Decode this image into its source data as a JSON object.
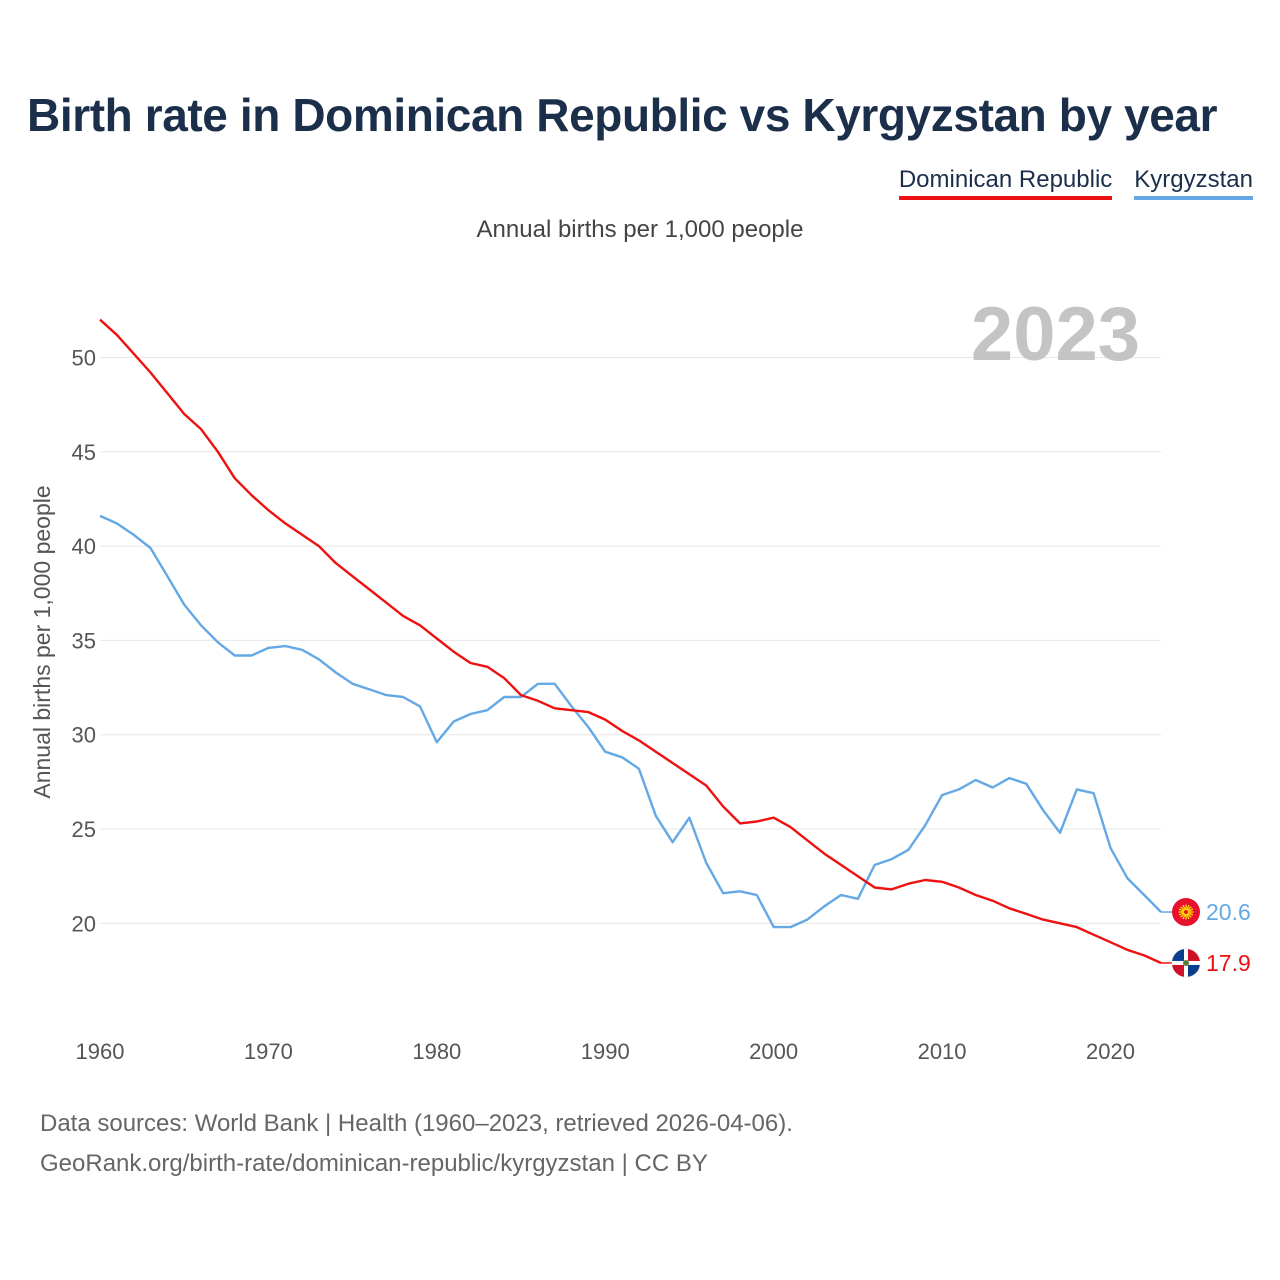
{
  "chart_data": {
    "type": "line",
    "title": "Birth rate in Dominican Republic vs Kyrgyzstan by year",
    "subtitle": "Annual births per 1,000 people",
    "ylabel": "Annual births per 1,000 people",
    "xlabel": "",
    "year_label": "2023",
    "xlim": [
      1960,
      2023
    ],
    "ylim": [
      15.3,
      54
    ],
    "x_ticks": [
      1960,
      1970,
      1980,
      1990,
      2000,
      2010,
      2020
    ],
    "y_ticks": [
      20,
      25,
      30,
      35,
      40,
      45,
      50
    ],
    "grid": true,
    "legend_position": "top-right",
    "x": [
      1960,
      1961,
      1962,
      1963,
      1964,
      1965,
      1966,
      1967,
      1968,
      1969,
      1970,
      1971,
      1972,
      1973,
      1974,
      1975,
      1976,
      1977,
      1978,
      1979,
      1980,
      1981,
      1982,
      1983,
      1984,
      1985,
      1986,
      1987,
      1988,
      1989,
      1990,
      1991,
      1992,
      1993,
      1994,
      1995,
      1996,
      1997,
      1998,
      1999,
      2000,
      2001,
      2002,
      2003,
      2004,
      2005,
      2006,
      2007,
      2008,
      2009,
      2010,
      2011,
      2012,
      2013,
      2014,
      2015,
      2016,
      2017,
      2018,
      2019,
      2020,
      2021,
      2022,
      2023
    ],
    "series": [
      {
        "name": "Dominican Republic",
        "color": "#ee1111",
        "end_label": "17.9",
        "values": [
          52.0,
          51.2,
          50.2,
          49.2,
          48.1,
          47.0,
          46.2,
          45.0,
          43.6,
          42.7,
          41.9,
          41.2,
          40.6,
          40.0,
          39.1,
          38.4,
          37.7,
          37.0,
          36.3,
          35.8,
          35.1,
          34.4,
          33.8,
          33.6,
          33.0,
          32.1,
          31.8,
          31.4,
          31.3,
          31.2,
          30.8,
          30.2,
          29.7,
          29.1,
          28.5,
          27.9,
          27.3,
          26.2,
          25.3,
          25.4,
          25.6,
          25.1,
          24.4,
          23.7,
          23.1,
          22.5,
          21.9,
          21.8,
          22.1,
          22.3,
          22.2,
          21.9,
          21.5,
          21.2,
          20.8,
          20.5,
          20.2,
          20.0,
          19.8,
          19.4,
          19.0,
          18.6,
          18.3,
          17.9
        ]
      },
      {
        "name": "Kyrgyzstan",
        "color": "#64a8e6",
        "end_label": "20.6",
        "values": [
          41.6,
          41.2,
          40.6,
          39.9,
          38.4,
          36.9,
          35.8,
          34.9,
          34.2,
          34.2,
          34.6,
          34.7,
          34.5,
          34.0,
          33.3,
          32.7,
          32.4,
          32.1,
          32.0,
          31.5,
          29.6,
          30.7,
          31.1,
          31.3,
          32.0,
          32.0,
          32.7,
          32.7,
          31.5,
          30.4,
          29.1,
          28.8,
          28.2,
          25.7,
          24.3,
          25.6,
          23.2,
          21.6,
          21.7,
          21.5,
          19.8,
          19.8,
          20.2,
          20.9,
          21.5,
          21.3,
          23.1,
          23.4,
          23.9,
          25.2,
          26.8,
          27.1,
          27.6,
          27.2,
          27.7,
          27.4,
          26.0,
          24.8,
          27.1,
          26.9,
          24.0,
          22.4,
          21.5,
          20.6
        ]
      }
    ]
  },
  "legend": {
    "items": [
      {
        "label": "Dominican Republic"
      },
      {
        "label": "Kyrgyzstan"
      }
    ]
  },
  "footer": {
    "line1": "Data sources: World Bank | Health (1960–2023, retrieved 2026-04-06).",
    "line2": "GeoRank.org/birth-rate/dominican-republic/kyrgyzstan | CC BY"
  }
}
